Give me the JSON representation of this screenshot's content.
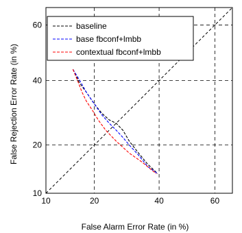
{
  "chart_data": {
    "type": "line",
    "xlabel": "False Alarm Error Rate (in %)",
    "ylabel": "False Rejection Error Rate (in %)",
    "xlim": [
      10,
      66
    ],
    "ylim": [
      10,
      66
    ],
    "x_ticks": [
      10,
      20,
      40,
      60
    ],
    "y_ticks": [
      10,
      20,
      40,
      60
    ],
    "x_tick_labels": [
      "10",
      "20",
      "40",
      "60"
    ],
    "y_tick_labels": [
      "10",
      "20",
      "40",
      "60"
    ],
    "scale": "DET (probit) axes",
    "grid": true,
    "legend_position": "top-left",
    "reference_line": {
      "style": "dashed",
      "color": "#000000",
      "from": [
        10,
        10
      ],
      "to": [
        66,
        66
      ]
    },
    "series": [
      {
        "name": "baseline",
        "color": "#000000",
        "style": "dashed",
        "points": [
          [
            15,
            44
          ],
          [
            16.5,
            39
          ],
          [
            18,
            36
          ],
          [
            20,
            32
          ],
          [
            22,
            29
          ],
          [
            24,
            27
          ],
          [
            26,
            26
          ],
          [
            28,
            24
          ],
          [
            30,
            21
          ],
          [
            33,
            18
          ],
          [
            36,
            15.5
          ],
          [
            39.5,
            13.5
          ]
        ]
      },
      {
        "name": "base fbconf+lmbb",
        "color": "#0000ff",
        "style": "dashed",
        "points": [
          [
            15,
            44
          ],
          [
            16.5,
            40
          ],
          [
            18,
            36
          ],
          [
            20,
            32
          ],
          [
            22,
            28.5
          ],
          [
            24,
            26
          ],
          [
            26,
            24
          ],
          [
            28,
            22
          ],
          [
            30,
            20
          ],
          [
            33,
            17.5
          ],
          [
            36,
            15
          ],
          [
            39.5,
            13.5
          ]
        ]
      },
      {
        "name": "contextual fbconf+lmbb",
        "color": "#ff0000",
        "style": "dashed",
        "points": [
          [
            15,
            44
          ],
          [
            16,
            40
          ],
          [
            17,
            36
          ],
          [
            18,
            33
          ],
          [
            19.5,
            30
          ],
          [
            21,
            27
          ],
          [
            23,
            24
          ],
          [
            26,
            21
          ],
          [
            30,
            18
          ],
          [
            34,
            16
          ],
          [
            39,
            13.5
          ]
        ]
      }
    ]
  }
}
